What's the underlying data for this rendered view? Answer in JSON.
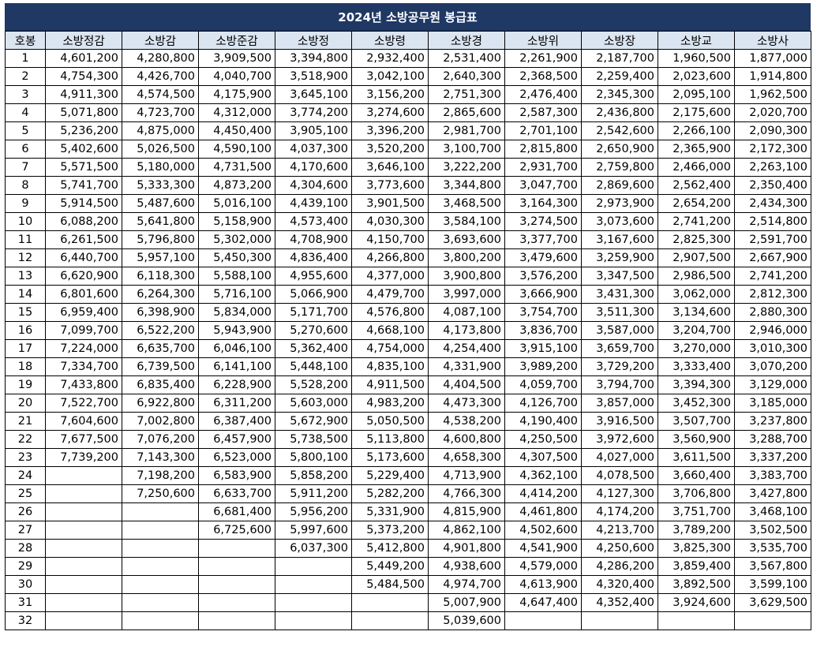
{
  "title": "2024년 소방공무원 봉급표",
  "headers": [
    "호봉",
    "소방정감",
    "소방감",
    "소방준감",
    "소방정",
    "소방령",
    "소방경",
    "소방위",
    "소방장",
    "소방교",
    "소방사"
  ],
  "rows": [
    [
      "1",
      "4,601,200",
      "4,280,800",
      "3,909,500",
      "3,394,800",
      "2,932,400",
      "2,531,400",
      "2,261,900",
      "2,187,700",
      "1,960,500",
      "1,877,000"
    ],
    [
      "2",
      "4,754,300",
      "4,426,700",
      "4,040,700",
      "3,518,900",
      "3,042,100",
      "2,640,300",
      "2,368,500",
      "2,259,400",
      "2,023,600",
      "1,914,800"
    ],
    [
      "3",
      "4,911,300",
      "4,574,500",
      "4,175,900",
      "3,645,100",
      "3,156,200",
      "2,751,300",
      "2,476,400",
      "2,345,300",
      "2,095,100",
      "1,962,500"
    ],
    [
      "4",
      "5,071,800",
      "4,723,700",
      "4,312,000",
      "3,774,200",
      "3,274,600",
      "2,865,600",
      "2,587,300",
      "2,436,800",
      "2,175,600",
      "2,020,700"
    ],
    [
      "5",
      "5,236,200",
      "4,875,000",
      "4,450,400",
      "3,905,100",
      "3,396,200",
      "2,981,700",
      "2,701,100",
      "2,542,600",
      "2,266,100",
      "2,090,300"
    ],
    [
      "6",
      "5,402,600",
      "5,026,500",
      "4,590,100",
      "4,037,300",
      "3,520,200",
      "3,100,700",
      "2,815,800",
      "2,650,900",
      "2,365,900",
      "2,172,300"
    ],
    [
      "7",
      "5,571,500",
      "5,180,000",
      "4,731,500",
      "4,170,600",
      "3,646,100",
      "3,222,200",
      "2,931,700",
      "2,759,800",
      "2,466,000",
      "2,263,100"
    ],
    [
      "8",
      "5,741,700",
      "5,333,300",
      "4,873,200",
      "4,304,600",
      "3,773,600",
      "3,344,800",
      "3,047,700",
      "2,869,600",
      "2,562,400",
      "2,350,400"
    ],
    [
      "9",
      "5,914,500",
      "5,487,600",
      "5,016,100",
      "4,439,100",
      "3,901,500",
      "3,468,500",
      "3,164,300",
      "2,973,900",
      "2,654,200",
      "2,434,300"
    ],
    [
      "10",
      "6,088,200",
      "5,641,800",
      "5,158,900",
      "4,573,400",
      "4,030,300",
      "3,584,100",
      "3,274,500",
      "3,073,600",
      "2,741,200",
      "2,514,800"
    ],
    [
      "11",
      "6,261,500",
      "5,796,800",
      "5,302,000",
      "4,708,900",
      "4,150,700",
      "3,693,600",
      "3,377,700",
      "3,167,600",
      "2,825,300",
      "2,591,700"
    ],
    [
      "12",
      "6,440,700",
      "5,957,100",
      "5,450,300",
      "4,836,400",
      "4,266,800",
      "3,800,200",
      "3,479,600",
      "3,259,900",
      "2,907,500",
      "2,667,900"
    ],
    [
      "13",
      "6,620,900",
      "6,118,300",
      "5,588,100",
      "4,955,600",
      "4,377,000",
      "3,900,800",
      "3,576,200",
      "3,347,500",
      "2,986,500",
      "2,741,200"
    ],
    [
      "14",
      "6,801,600",
      "6,264,300",
      "5,716,100",
      "5,066,900",
      "4,479,700",
      "3,997,000",
      "3,666,900",
      "3,431,300",
      "3,062,000",
      "2,812,300"
    ],
    [
      "15",
      "6,959,400",
      "6,398,900",
      "5,834,000",
      "5,171,700",
      "4,576,800",
      "4,087,100",
      "3,754,700",
      "3,511,300",
      "3,134,600",
      "2,880,300"
    ],
    [
      "16",
      "7,099,700",
      "6,522,200",
      "5,943,900",
      "5,270,600",
      "4,668,100",
      "4,173,800",
      "3,836,700",
      "3,587,000",
      "3,204,700",
      "2,946,000"
    ],
    [
      "17",
      "7,224,000",
      "6,635,700",
      "6,046,100",
      "5,362,400",
      "4,754,000",
      "4,254,400",
      "3,915,100",
      "3,659,700",
      "3,270,000",
      "3,010,300"
    ],
    [
      "18",
      "7,334,700",
      "6,739,500",
      "6,141,100",
      "5,448,100",
      "4,835,100",
      "4,331,900",
      "3,989,200",
      "3,729,200",
      "3,333,400",
      "3,070,200"
    ],
    [
      "19",
      "7,433,800",
      "6,835,400",
      "6,228,900",
      "5,528,200",
      "4,911,500",
      "4,404,500",
      "4,059,700",
      "3,794,700",
      "3,394,300",
      "3,129,000"
    ],
    [
      "20",
      "7,522,700",
      "6,922,800",
      "6,311,200",
      "5,603,000",
      "4,983,200",
      "4,473,300",
      "4,126,700",
      "3,857,000",
      "3,452,300",
      "3,185,000"
    ],
    [
      "21",
      "7,604,600",
      "7,002,800",
      "6,387,400",
      "5,672,900",
      "5,050,500",
      "4,538,200",
      "4,190,400",
      "3,916,500",
      "3,507,700",
      "3,237,800"
    ],
    [
      "22",
      "7,677,500",
      "7,076,200",
      "6,457,900",
      "5,738,500",
      "5,113,800",
      "4,600,800",
      "4,250,500",
      "3,972,600",
      "3,560,900",
      "3,288,700"
    ],
    [
      "23",
      "7,739,200",
      "7,143,300",
      "6,523,000",
      "5,800,100",
      "5,173,600",
      "4,658,300",
      "4,307,500",
      "4,027,000",
      "3,611,500",
      "3,337,200"
    ],
    [
      "24",
      "",
      "7,198,200",
      "6,583,900",
      "5,858,200",
      "5,229,400",
      "4,713,900",
      "4,362,100",
      "4,078,500",
      "3,660,400",
      "3,383,700"
    ],
    [
      "25",
      "",
      "7,250,600",
      "6,633,700",
      "5,911,200",
      "5,282,200",
      "4,766,300",
      "4,414,200",
      "4,127,300",
      "3,706,800",
      "3,427,800"
    ],
    [
      "26",
      "",
      "",
      "6,681,400",
      "5,956,200",
      "5,331,900",
      "4,815,900",
      "4,461,800",
      "4,174,200",
      "3,751,700",
      "3,468,100"
    ],
    [
      "27",
      "",
      "",
      "6,725,600",
      "5,997,600",
      "5,373,200",
      "4,862,100",
      "4,502,600",
      "4,213,700",
      "3,789,200",
      "3,502,500"
    ],
    [
      "28",
      "",
      "",
      "",
      "6,037,300",
      "5,412,800",
      "4,901,800",
      "4,541,900",
      "4,250,600",
      "3,825,300",
      "3,535,700"
    ],
    [
      "29",
      "",
      "",
      "",
      "",
      "5,449,200",
      "4,938,600",
      "4,579,000",
      "4,286,200",
      "3,859,400",
      "3,567,800"
    ],
    [
      "30",
      "",
      "",
      "",
      "",
      "5,484,500",
      "4,974,700",
      "4,613,900",
      "4,320,400",
      "3,892,500",
      "3,599,100"
    ],
    [
      "31",
      "",
      "",
      "",
      "",
      "",
      "5,007,900",
      "4,647,400",
      "4,352,400",
      "3,924,600",
      "3,629,500"
    ],
    [
      "32",
      "",
      "",
      "",
      "",
      "",
      "5,039,600",
      "",
      "",
      "",
      ""
    ]
  ]
}
